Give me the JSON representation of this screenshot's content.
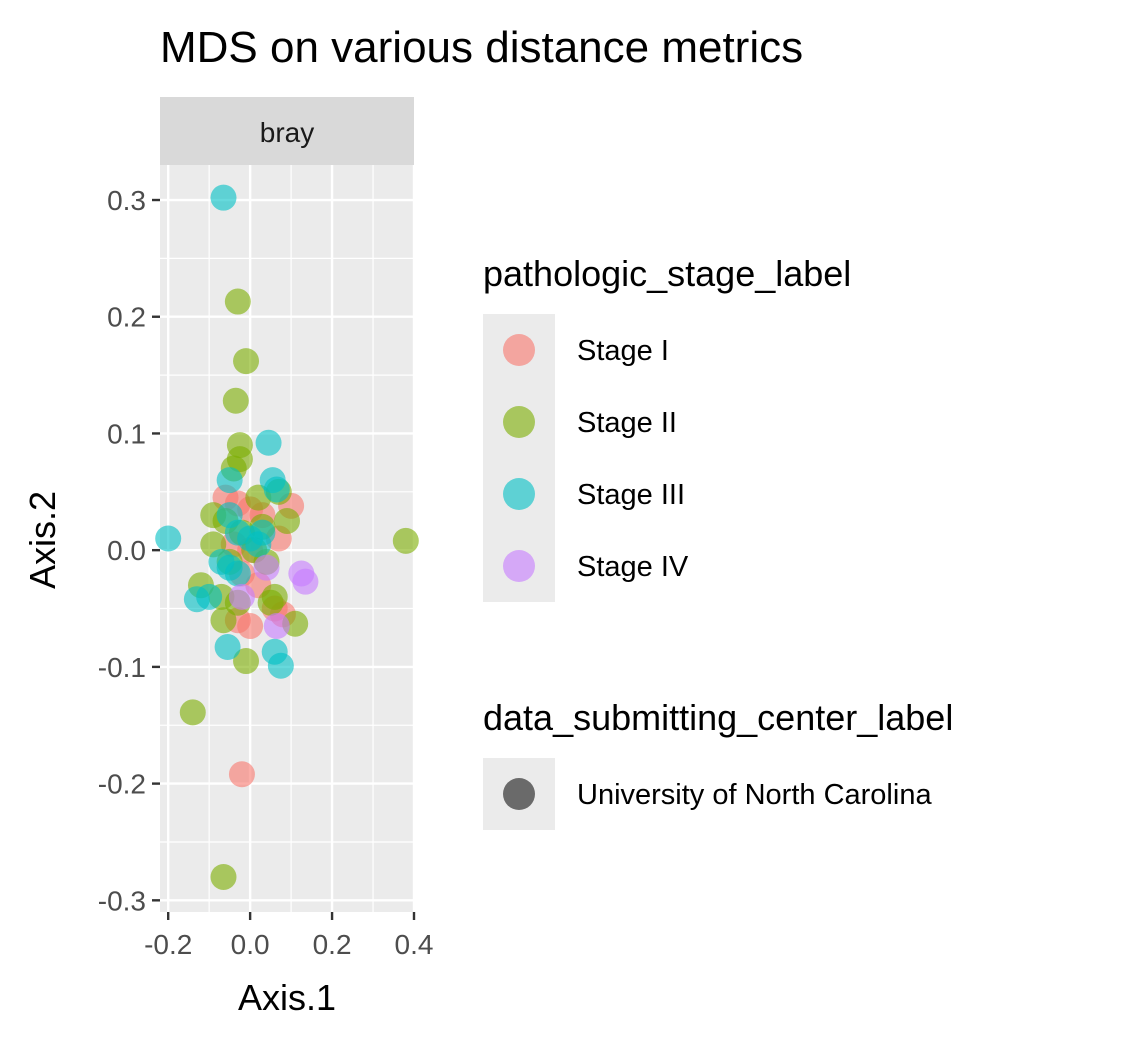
{
  "chart_data": {
    "type": "scatter",
    "title": "MDS on various distance metrics",
    "facet_label": "bray",
    "xlabel": "Axis.1",
    "ylabel": "Axis.2",
    "xlim": [
      -0.22,
      0.4
    ],
    "ylim": [
      -0.31,
      0.33
    ],
    "x_ticks": [
      -0.2,
      0.0,
      0.2,
      0.4
    ],
    "x_tick_labels": [
      "-0.2",
      "0.0",
      "0.2",
      "0.4"
    ],
    "y_ticks": [
      -0.3,
      -0.2,
      -0.1,
      0.0,
      0.1,
      0.2,
      0.3
    ],
    "y_tick_labels": [
      "-0.3",
      "-0.2",
      "-0.1",
      "0.0",
      "0.1",
      "0.2",
      "0.3"
    ],
    "grid": true,
    "legend_position": "right",
    "legends": [
      {
        "title": "pathologic_stage_label",
        "entries": [
          {
            "label": "Stage I",
            "color": "#F8766D"
          },
          {
            "label": "Stage II",
            "color": "#7CAE00"
          },
          {
            "label": "Stage III",
            "color": "#00BFC4"
          },
          {
            "label": "Stage IV",
            "color": "#C77CFF"
          }
        ]
      },
      {
        "title": "data_submitting_center_label",
        "entries": [
          {
            "label": "University of North Carolina",
            "color": "#000000"
          }
        ]
      }
    ],
    "series": [
      {
        "name": "Stage I",
        "color": "#F8766D",
        "points": [
          [
            -0.06,
            0.045
          ],
          [
            -0.03,
            0.04
          ],
          [
            0.0,
            0.035
          ],
          [
            0.03,
            0.03
          ],
          [
            0.1,
            0.038
          ],
          [
            -0.04,
            0.005
          ],
          [
            0.0,
            0.0
          ],
          [
            0.07,
            0.01
          ],
          [
            -0.02,
            -0.02
          ],
          [
            0.02,
            -0.03
          ],
          [
            0.06,
            -0.05
          ],
          [
            0.08,
            -0.055
          ],
          [
            0.0,
            -0.065
          ],
          [
            -0.03,
            -0.06
          ],
          [
            -0.02,
            -0.192
          ]
        ]
      },
      {
        "name": "Stage II",
        "color": "#7CAE00",
        "points": [
          [
            -0.03,
            0.213
          ],
          [
            -0.01,
            0.162
          ],
          [
            -0.035,
            0.128
          ],
          [
            -0.025,
            0.09
          ],
          [
            -0.025,
            0.078
          ],
          [
            -0.04,
            0.07
          ],
          [
            0.02,
            0.045
          ],
          [
            0.07,
            0.05
          ],
          [
            0.09,
            0.025
          ],
          [
            -0.09,
            0.03
          ],
          [
            -0.06,
            0.025
          ],
          [
            -0.02,
            0.015
          ],
          [
            0.03,
            0.02
          ],
          [
            -0.09,
            0.005
          ],
          [
            -0.05,
            -0.01
          ],
          [
            0.01,
            0.0
          ],
          [
            0.04,
            -0.01
          ],
          [
            -0.12,
            -0.03
          ],
          [
            -0.07,
            -0.04
          ],
          [
            -0.03,
            -0.045
          ],
          [
            0.06,
            -0.04
          ],
          [
            0.05,
            -0.045
          ],
          [
            0.11,
            -0.063
          ],
          [
            -0.065,
            -0.06
          ],
          [
            -0.01,
            -0.095
          ],
          [
            -0.14,
            -0.139
          ],
          [
            -0.065,
            -0.28
          ],
          [
            0.38,
            0.008
          ]
        ]
      },
      {
        "name": "Stage III",
        "color": "#00BFC4",
        "points": [
          [
            -0.065,
            0.302
          ],
          [
            0.045,
            0.092
          ],
          [
            0.055,
            0.06
          ],
          [
            0.065,
            0.052
          ],
          [
            -0.05,
            0.06
          ],
          [
            -0.05,
            0.03
          ],
          [
            -0.03,
            0.015
          ],
          [
            0.0,
            0.01
          ],
          [
            0.03,
            0.015
          ],
          [
            -0.2,
            0.01
          ],
          [
            -0.05,
            -0.015
          ],
          [
            -0.07,
            -0.01
          ],
          [
            -0.13,
            -0.042
          ],
          [
            -0.1,
            -0.04
          ],
          [
            -0.055,
            -0.083
          ],
          [
            0.06,
            -0.087
          ],
          [
            0.075,
            -0.099
          ],
          [
            -0.03,
            -0.02
          ],
          [
            0.02,
            0.005
          ]
        ]
      },
      {
        "name": "Stage IV",
        "color": "#C77CFF",
        "points": [
          [
            0.125,
            -0.02
          ],
          [
            0.135,
            -0.027
          ],
          [
            0.065,
            -0.065
          ],
          [
            0.04,
            -0.015
          ],
          [
            -0.02,
            -0.04
          ]
        ]
      }
    ]
  }
}
